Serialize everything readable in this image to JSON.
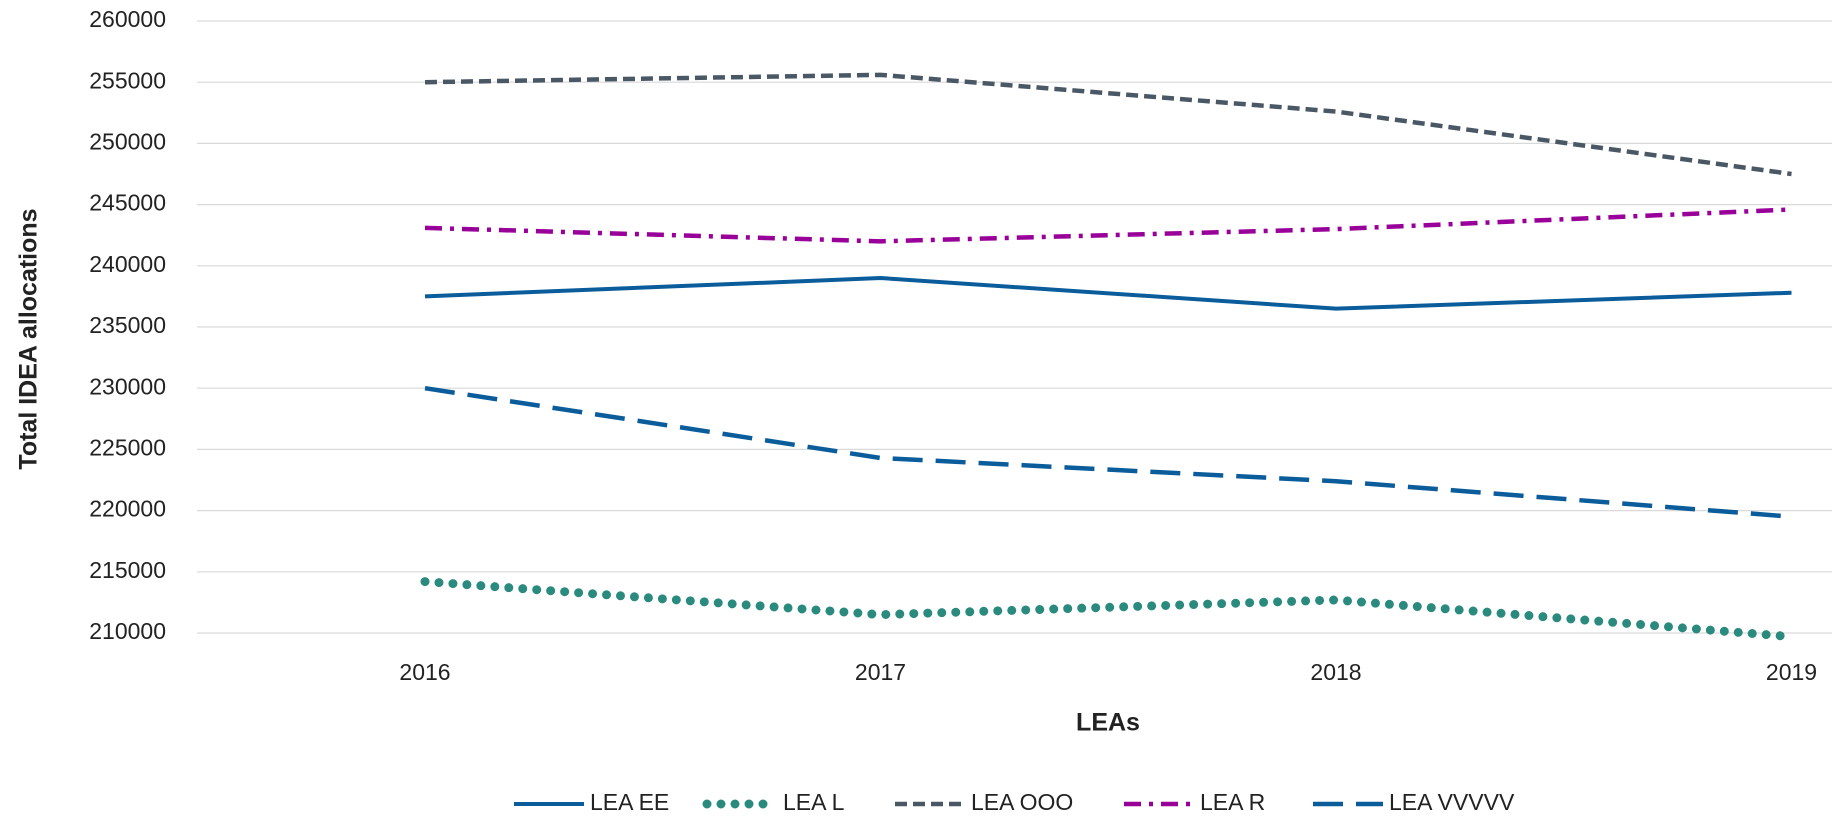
{
  "chart_data": {
    "type": "line",
    "x_label": "LEAs",
    "y_label": "Total IDEA allocations",
    "categories": [
      "2016",
      "2017",
      "2018",
      "2019"
    ],
    "series": [
      {
        "name": "LEA EE",
        "color": "#0b5c9b",
        "dash": "solid",
        "values": [
          237500,
          239000,
          236500,
          237800
        ]
      },
      {
        "name": "LEA L",
        "color": "#2a8a7e",
        "dash": "dot",
        "values": [
          214200,
          211500,
          212700,
          209700
        ]
      },
      {
        "name": "LEA OOO",
        "color": "#4a5866",
        "dash": "dash",
        "values": [
          255000,
          255600,
          252600,
          247500
        ]
      },
      {
        "name": "LEA R",
        "color": "#990099",
        "dash": "dashdot",
        "values": [
          243100,
          242000,
          243000,
          244600
        ]
      },
      {
        "name": "LEA VVVVV",
        "color": "#0b5c9b",
        "dash": "longdash",
        "values": [
          230000,
          224300,
          222400,
          219500
        ]
      }
    ],
    "ylim": [
      210000,
      260000
    ],
    "yticks": [
      210000,
      215000,
      220000,
      225000,
      230000,
      235000,
      240000,
      245000,
      250000,
      255000,
      260000
    ],
    "grid": true,
    "legend": "bottom"
  }
}
